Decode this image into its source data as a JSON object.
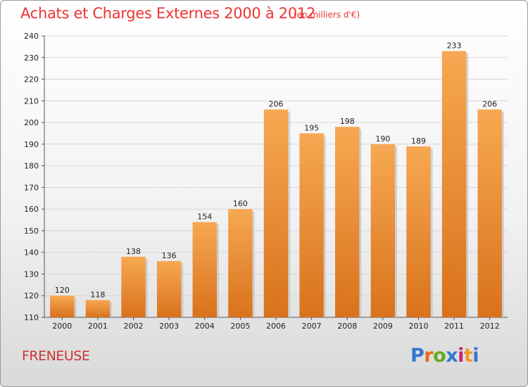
{
  "header": {
    "title": "Achats et Charges Externes 2000 à 2012",
    "subtitle": "(en milliers d'€)"
  },
  "footer": {
    "commune": "FRENEUSE",
    "logo_text": "Proxiti"
  },
  "colors": {
    "bar_light": "#f7a852",
    "bar_dark": "#d9721c",
    "title": "#ee3333"
  },
  "chart_data": {
    "type": "bar",
    "categories": [
      "2000",
      "2001",
      "2002",
      "2003",
      "2004",
      "2005",
      "2006",
      "2007",
      "2008",
      "2009",
      "2010",
      "2011",
      "2012"
    ],
    "values": [
      120,
      118,
      138,
      136,
      154,
      160,
      206,
      195,
      198,
      190,
      189,
      233,
      206
    ],
    "ylim": [
      110,
      240
    ],
    "yticks": [
      110,
      120,
      130,
      140,
      150,
      160,
      170,
      180,
      190,
      200,
      210,
      220,
      230,
      240
    ],
    "grid": true,
    "legend": "none"
  }
}
